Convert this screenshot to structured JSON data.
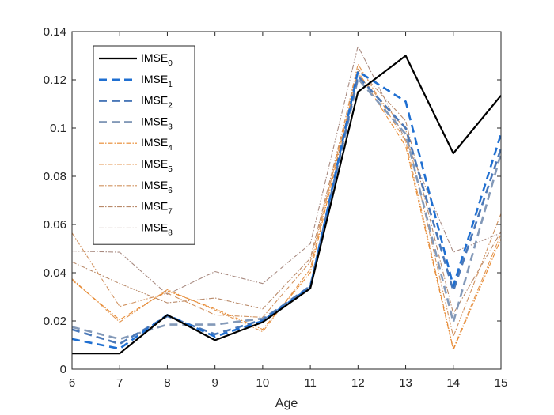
{
  "chart_data": {
    "type": "line",
    "title": "",
    "xlabel": "Age",
    "ylabel": "",
    "x": [
      6,
      7,
      8,
      9,
      10,
      11,
      12,
      13,
      14,
      15
    ],
    "xlim": [
      6,
      15
    ],
    "ylim": [
      0,
      0.14
    ],
    "xticks": [
      "6",
      "7",
      "8",
      "9",
      "10",
      "11",
      "12",
      "13",
      "14",
      "15"
    ],
    "yticks": [
      "0",
      "0.02",
      "0.04",
      "0.06",
      "0.08",
      "0.1",
      "0.12",
      "0.14"
    ],
    "ytick_values": [
      0,
      0.02,
      0.04,
      0.06,
      0.08,
      0.1,
      0.12,
      0.14
    ],
    "grid": false,
    "legend_position": "top-left",
    "series": [
      {
        "name": "IMSE",
        "sub": "0",
        "color": "#000000",
        "style": "solid",
        "values": [
          0.0065,
          0.0065,
          0.0225,
          0.012,
          0.0195,
          0.0335,
          0.115,
          0.13,
          0.0895,
          0.1135
        ]
      },
      {
        "name": "IMSE",
        "sub": "1",
        "color": "#1f6fd1",
        "style": "dashed",
        "values": [
          0.0125,
          0.0085,
          0.0225,
          0.0135,
          0.02,
          0.034,
          0.1235,
          0.111,
          0.0345,
          0.0975
        ]
      },
      {
        "name": "IMSE",
        "sub": "2",
        "color": "#4a78b8",
        "style": "dashed",
        "values": [
          0.0165,
          0.0105,
          0.022,
          0.0145,
          0.0205,
          0.0345,
          0.1215,
          0.1,
          0.0325,
          0.0915
        ]
      },
      {
        "name": "IMSE",
        "sub": "3",
        "color": "#8399b8",
        "style": "dashed",
        "values": [
          0.0175,
          0.0125,
          0.0185,
          0.0185,
          0.021,
          0.0335,
          0.1205,
          0.0975,
          0.0195,
          0.0895
        ]
      },
      {
        "name": "IMSE",
        "sub": "4",
        "color": "#e8892f",
        "style": "dashdot",
        "values": [
          0.037,
          0.0205,
          0.0325,
          0.025,
          0.0165,
          0.04,
          0.1235,
          0.0925,
          0.008,
          0.054
        ]
      },
      {
        "name": "IMSE",
        "sub": "5",
        "color": "#e3954f",
        "style": "dashdot",
        "values": [
          0.0375,
          0.0195,
          0.033,
          0.0245,
          0.0155,
          0.0415,
          0.1265,
          0.0945,
          0.0085,
          0.056
        ]
      },
      {
        "name": "IMSE",
        "sub": "6",
        "color": "#d1925f",
        "style": "dashdot",
        "values": [
          0.0565,
          0.026,
          0.0315,
          0.0225,
          0.0215,
          0.0445,
          0.1225,
          0.0995,
          0.0135,
          0.0645
        ]
      },
      {
        "name": "IMSE",
        "sub": "7",
        "color": "#b98a6a",
        "style": "dashdot",
        "values": [
          0.0445,
          0.0355,
          0.0275,
          0.0295,
          0.025,
          0.046,
          0.1245,
          0.103,
          0.023,
          0.057
        ]
      },
      {
        "name": "IMSE",
        "sub": "8",
        "color": "#a88a80",
        "style": "dashdot",
        "values": [
          0.049,
          0.0485,
          0.031,
          0.0405,
          0.0355,
          0.052,
          0.134,
          0.095,
          0.0485,
          0.0565
        ]
      }
    ]
  }
}
